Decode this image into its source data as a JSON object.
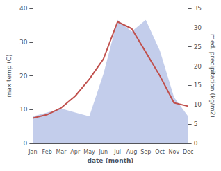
{
  "chart_data": {
    "type": "line",
    "categories": [
      "Jan",
      "Feb",
      "Mar",
      "Apr",
      "May",
      "Jun",
      "Jul",
      "Aug",
      "Sep",
      "Oct",
      "Nov",
      "Dec"
    ],
    "series": [
      {
        "type": "area",
        "color": "#b8c4e8",
        "axis": "y2",
        "values": [
          7,
          8,
          9,
          8,
          7,
          18,
          32,
          29,
          32,
          24,
          12,
          7
        ]
      },
      {
        "type": "line",
        "color": "#c0504d",
        "values": [
          7.5,
          8.5,
          10.5,
          14,
          19,
          25,
          36,
          34,
          27,
          20,
          12,
          11
        ]
      }
    ],
    "xlabel": "date (month)",
    "ylabel": "max temp (C)",
    "y2label": "med. precipitation (kg/m2)",
    "ylim": [
      0,
      40
    ],
    "yticks": [
      0,
      10,
      20,
      30,
      40
    ],
    "y2lim": [
      0,
      35
    ],
    "y2ticks": [
      0,
      5,
      10,
      15,
      20,
      25,
      30,
      35
    ],
    "grid": false
  }
}
